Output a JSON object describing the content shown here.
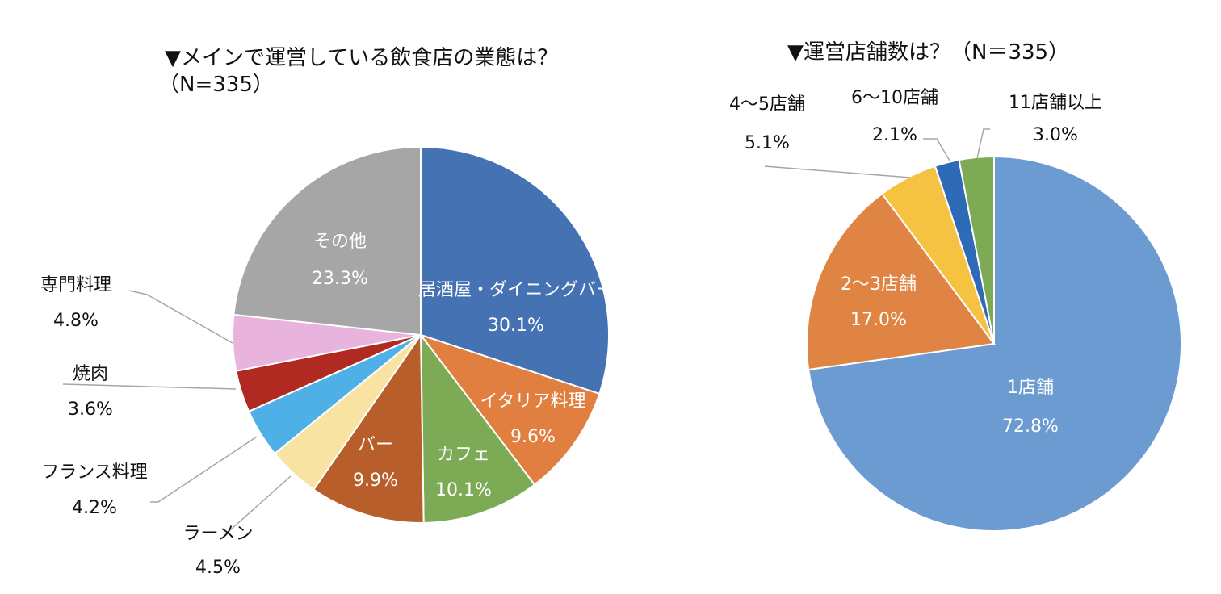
{
  "chart_data": [
    {
      "type": "pie",
      "title": "▼メインで運営している飲食店の業態は？",
      "subtitle": "（N=335）",
      "slices": [
        {
          "label": "居酒屋・ダイニングバー",
          "value": 30.1,
          "value_label": "30.1%",
          "color": "#4472b3"
        },
        {
          "label": "イタリア料理",
          "value": 9.6,
          "value_label": "9.6%",
          "color": "#e07f3f"
        },
        {
          "label": "カフェ",
          "value": 10.1,
          "value_label": "10.1%",
          "color": "#7dab55"
        },
        {
          "label": "バー",
          "value": 9.9,
          "value_label": "9.9%",
          "color": "#b85e2b"
        },
        {
          "label": "ラーメン",
          "value": 4.5,
          "value_label": "4.5%",
          "color": "#f8e3a3"
        },
        {
          "label": "フランス料理",
          "value": 4.2,
          "value_label": "4.2%",
          "color": "#4fb0e8"
        },
        {
          "label": "焼肉",
          "value": 3.6,
          "value_label": "3.6%",
          "color": "#b02a22"
        },
        {
          "label": "専門料理",
          "value": 4.8,
          "value_label": "4.8%",
          "color": "#e8b4de"
        },
        {
          "label": "その他",
          "value": 23.3,
          "value_label": "23.3%",
          "color": "#a6a6a6"
        }
      ]
    },
    {
      "type": "pie",
      "title": "▼運営店舗数は？（N＝335）",
      "slices": [
        {
          "label": "1店舗",
          "value": 72.8,
          "value_label": "72.8%",
          "color": "#6b9bd1"
        },
        {
          "label": "2〜3店舗",
          "value": 17.0,
          "value_label": "17.0%",
          "color": "#e08444"
        },
        {
          "label": "4〜5店舗",
          "value": 5.1,
          "value_label": "5.1%",
          "color": "#f5c242"
        },
        {
          "label": "6〜10店舗",
          "value": 2.1,
          "value_label": "2.1%",
          "color": "#2d6ab8"
        },
        {
          "label": "11店舗以上",
          "value": 3.0,
          "value_label": "3.0%",
          "color": "#7dab55"
        }
      ]
    }
  ]
}
